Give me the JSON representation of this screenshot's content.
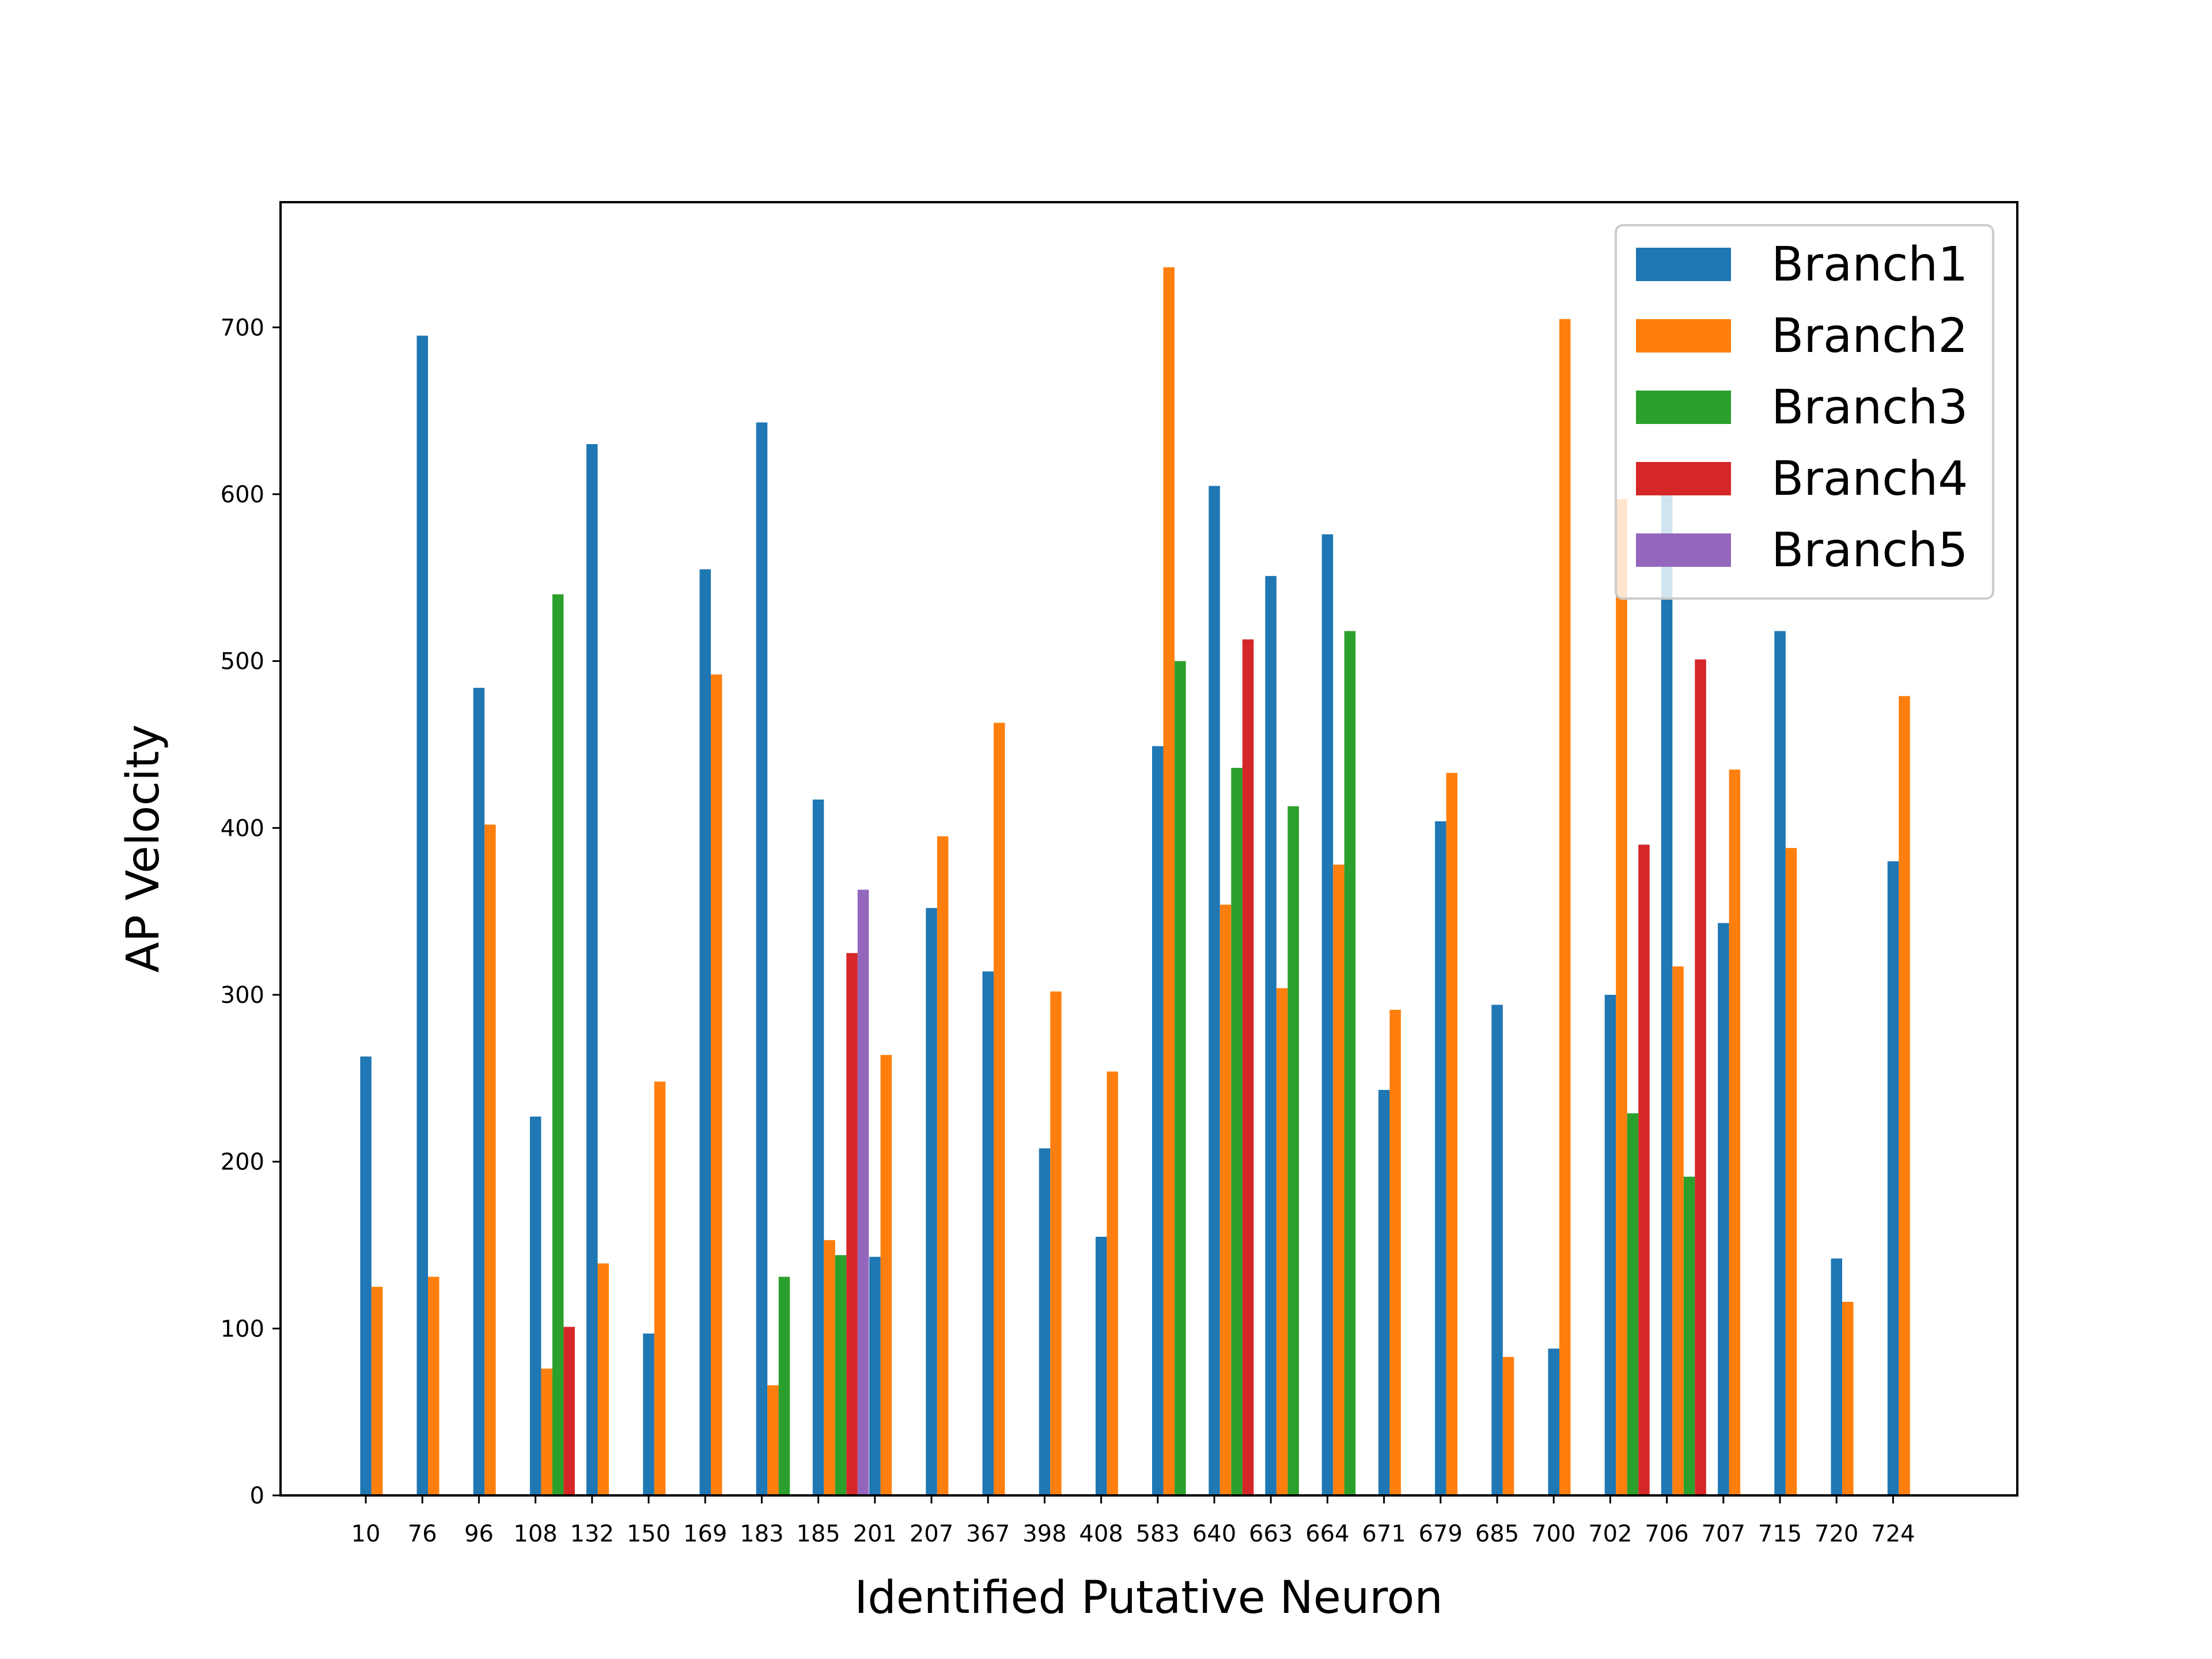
{
  "chart_data": {
    "type": "bar",
    "xlabel": "Identified Putative Neuron",
    "ylabel": "AP Velocity",
    "ylim": [
      0,
      775
    ],
    "yticks": [
      0,
      100,
      200,
      300,
      400,
      500,
      600,
      700
    ],
    "grid": false,
    "legend_position": "top-right",
    "categories": [
      "10",
      "76",
      "96",
      "108",
      "132",
      "150",
      "169",
      "183",
      "185",
      "201",
      "207",
      "367",
      "398",
      "408",
      "583",
      "640",
      "663",
      "664",
      "671",
      "679",
      "685",
      "700",
      "702",
      "706",
      "707",
      "715",
      "720",
      "724"
    ],
    "series": [
      {
        "name": "Branch1",
        "color": "#1f77b4",
        "values": [
          263,
          695,
          484,
          227,
          630,
          97,
          555,
          643,
          417,
          143,
          352,
          314,
          208,
          155,
          449,
          605,
          551,
          576,
          243,
          404,
          294,
          88,
          300,
          600,
          343,
          518,
          142,
          380
        ]
      },
      {
        "name": "Branch2",
        "color": "#ff7f0e",
        "values": [
          125,
          131,
          402,
          76,
          139,
          248,
          492,
          66,
          153,
          264,
          395,
          463,
          302,
          254,
          736,
          354,
          304,
          378,
          291,
          433,
          83,
          705,
          597,
          317,
          435,
          388,
          116,
          479
        ]
      },
      {
        "name": "Branch3",
        "color": "#2ca02c",
        "values": [
          null,
          null,
          null,
          540,
          null,
          null,
          null,
          131,
          144,
          null,
          null,
          null,
          null,
          null,
          500,
          436,
          413,
          518,
          null,
          null,
          null,
          null,
          229,
          191,
          null,
          null,
          null,
          null
        ]
      },
      {
        "name": "Branch4",
        "color": "#d62728",
        "values": [
          null,
          null,
          null,
          101,
          null,
          null,
          null,
          null,
          325,
          null,
          null,
          null,
          null,
          null,
          null,
          513,
          null,
          null,
          null,
          null,
          null,
          null,
          390,
          501,
          null,
          null,
          null,
          null
        ]
      },
      {
        "name": "Branch5",
        "color": "#9467bd",
        "values": [
          null,
          null,
          null,
          null,
          null,
          null,
          null,
          null,
          363,
          null,
          null,
          null,
          null,
          null,
          null,
          null,
          null,
          null,
          null,
          null,
          null,
          null,
          null,
          null,
          null,
          null,
          null,
          null
        ]
      }
    ]
  }
}
